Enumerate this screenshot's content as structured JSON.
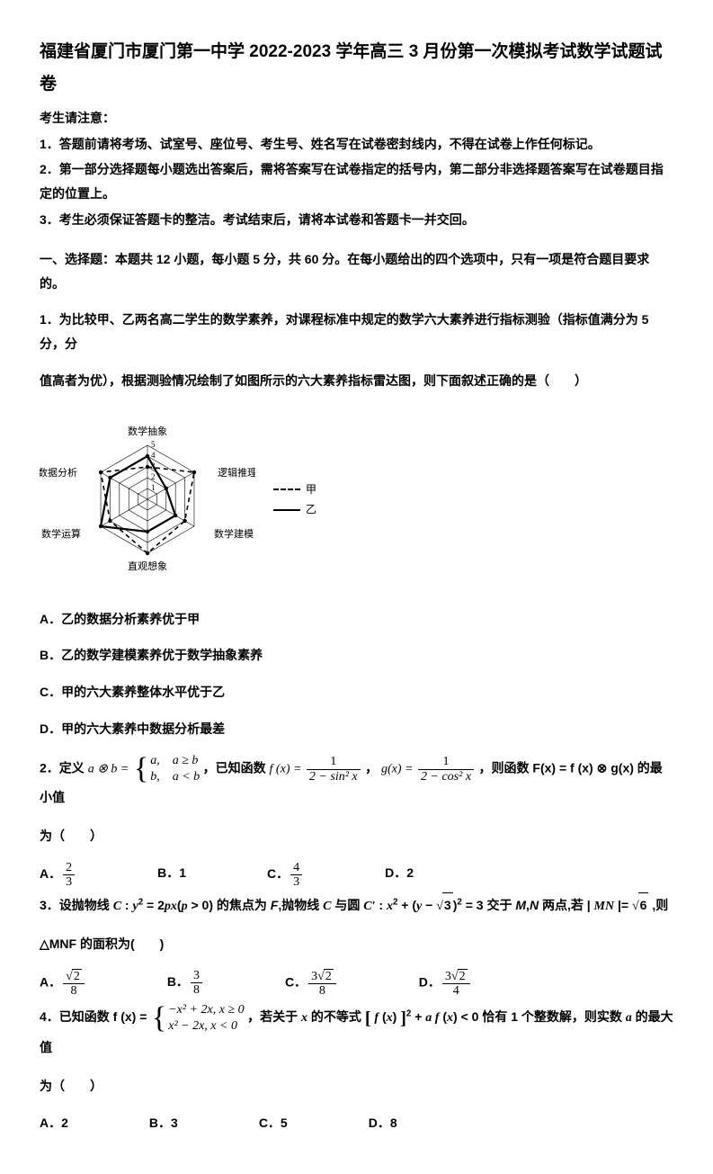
{
  "title": "福建省厦门市厦门第一中学 2022-2023 学年高三 3 月份第一次模拟考试数学试题试卷",
  "notice": {
    "head": "考生请注意：",
    "lines": [
      "1．答题前请将考场、试室号、座位号、考生号、姓名写在试卷密封线内，不得在试卷上作任何标记。",
      "2．第一部分选择题每小题选出答案后，需将答案写在试卷指定的括号内，第二部分非选择题答案写在试卷题目指定的位置上。",
      "3．考生必须保证答题卡的整洁。考试结束后，请将本试卷和答题卡一并交回。"
    ]
  },
  "section1_head": "一、选择题：本题共 12 小题，每小题 5 分，共 60 分。在每小题给出的四个选项中，只有一项是符合题目要求的。",
  "q1": {
    "stem1": "1．为比较甲、乙两名高二学生的数学素养，对课程标准中规定的数学六大素养进行指标测验（指标值满分为 5 分，分",
    "stem2": "值高者为优），根据测验情况绘制了如图所示的六大素养指标雷达图，则下面叙述正确的是（　　）",
    "optA": "A．乙的数据分析素养优于甲",
    "optB": "B．乙的数学建模素养优于数学抽象素养",
    "optC": "C．甲的六大素养整体水平优于乙",
    "optD": "D．甲的六大素养中数据分析最差",
    "radar": {
      "labels": [
        "数学抽象",
        "逻辑推理",
        "数学建模",
        "直观想象",
        "数学运算",
        "数据分析"
      ],
      "max": 5,
      "rings": [
        1,
        2,
        3,
        4,
        5
      ],
      "series": {
        "甲": {
          "style": "dashed",
          "values": [
            3,
            5,
            4,
            5,
            4,
            5
          ]
        },
        "乙": {
          "style": "solid",
          "values": [
            4,
            2,
            3,
            3,
            5,
            4
          ]
        }
      },
      "line_color": "#000000",
      "grid_color": "#000000",
      "label_fontsize": 11,
      "legend": [
        "甲",
        "乙"
      ]
    }
  },
  "q2": {
    "lead": "2．定义 ",
    "def_lhs": "a ⊗ b =",
    "case1": "a,　a ≥ b",
    "case2": "b,　a < b",
    "mid1": "，已知函数 ",
    "fx_lhs": "f (x) =",
    "fx_num": "1",
    "fx_den": "2 − sin² x",
    "comma1": "， ",
    "gx_lhs": "g(x) =",
    "gx_num": "1",
    "gx_den": "2 − cos² x",
    "tail": "，则函数 F(x) = f (x) ⊗ g(x) 的最小值",
    "tail2": "为（　　）",
    "A_label": "A．",
    "A_num": "2",
    "A_den": "3",
    "B": "B．1",
    "C_label": "C．",
    "C_num": "4",
    "C_den": "3",
    "D": "D．2"
  },
  "q3": {
    "stem_a": "3．设抛物线 C : y² = 2px(p > 0) 的焦点为 F,抛物线 C 与圆 C′ : x² + (y − √3)² = 3 交于 M,N 两点,若 | MN |= √6 ,则",
    "stem_b": "△MNF 的面积为(　　)",
    "A_label": "A．",
    "A_num": "√2",
    "A_den": "8",
    "B_label": "B．",
    "B_num": "3",
    "B_den": "8",
    "C_label": "C．",
    "C_num": "3√2",
    "C_den": "8",
    "D_label": "D．",
    "D_num": "3√2",
    "D_den": "4"
  },
  "q4": {
    "lead": "4．已知函数 f (x) =",
    "case1": "−x² + 2x, x ≥ 0",
    "case2": "x² − 2x, x < 0",
    "mid": "，若关于 x 的不等式 [ f (x) ]² + a f (x) < 0 恰有 1 个整数解，则实数 a 的最大值",
    "tail": "为（　　）",
    "A": "A．2",
    "B": "B．3",
    "C": "C．5",
    "D": "D．8"
  }
}
